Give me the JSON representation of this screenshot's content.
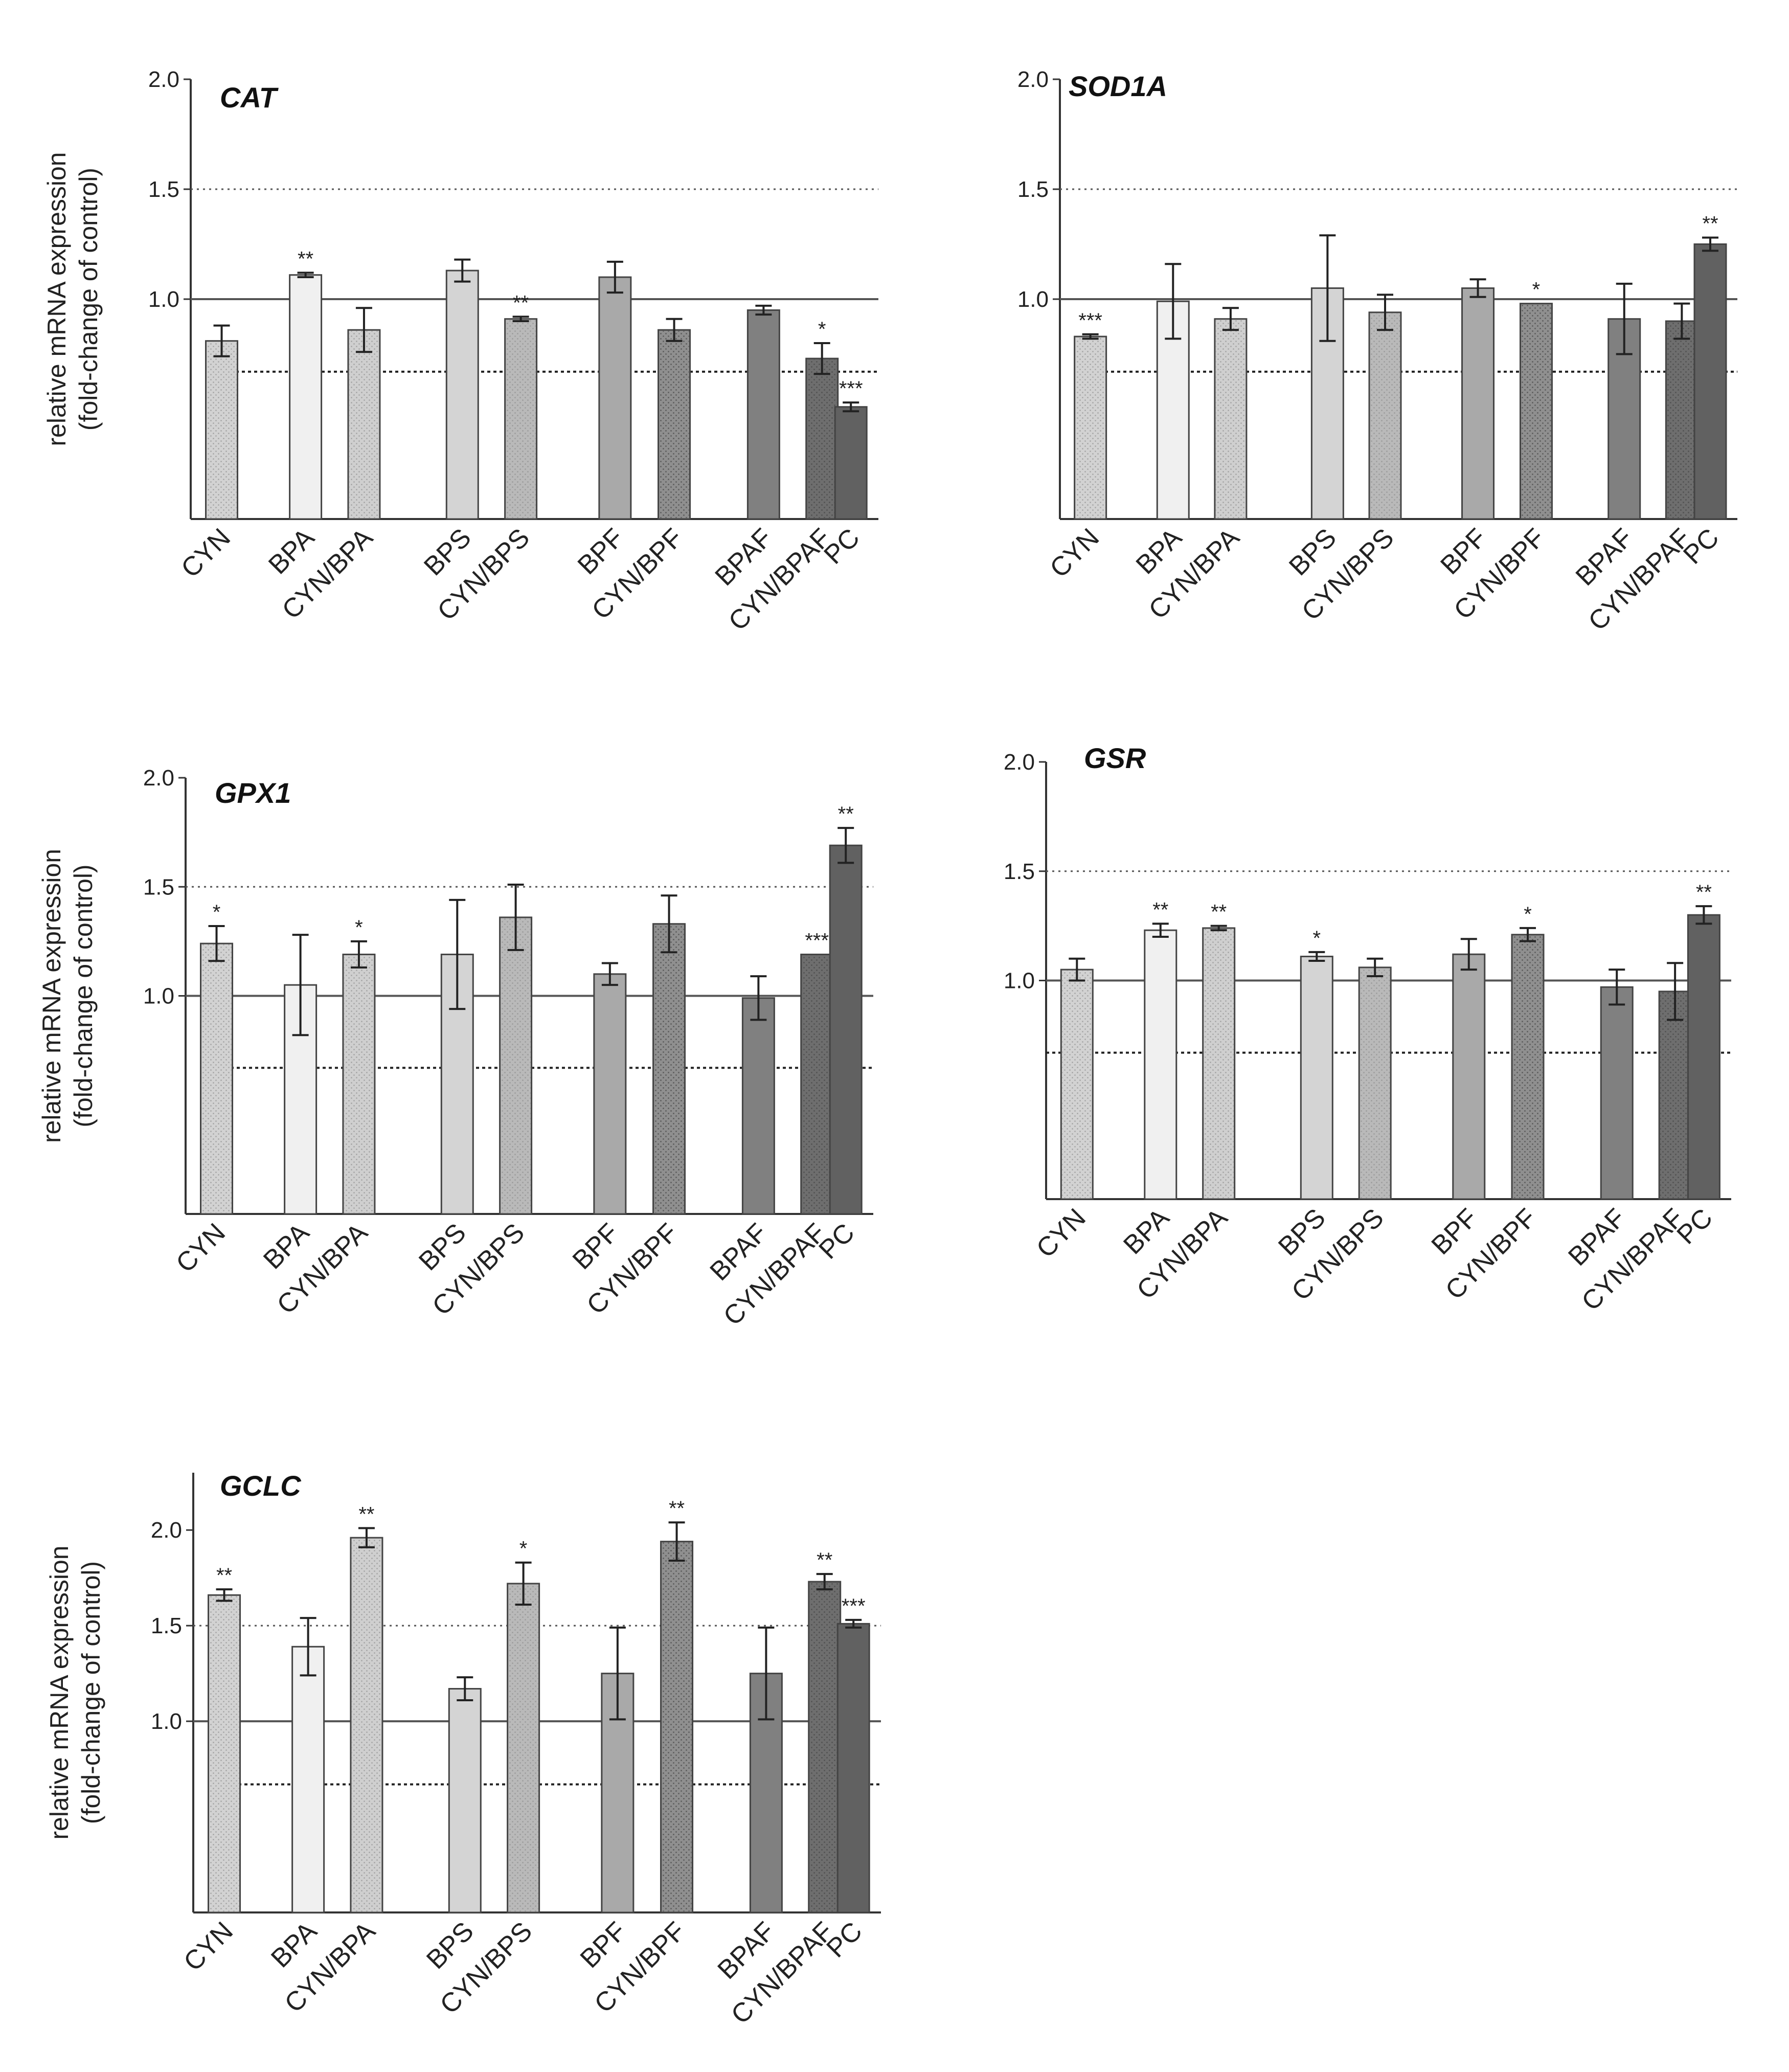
{
  "colors": {
    "background": "#ffffff",
    "axis": "#333333",
    "CYN": "#d2d2d2",
    "BPA": "#f0f0f0",
    "CYN/BPA": "#cfcfcf",
    "BPS": "#d4d4d4",
    "CYN/BPS": "#b9b9b9",
    "BPF": "#a9a9a9",
    "CYN/BPF": "#8f8f8f",
    "BPAF": "#808080",
    "CYN/BPAF": "#6e6e6e",
    "PC": "#616161"
  },
  "chart_data": [
    {
      "type": "bar",
      "title": "CAT",
      "ylabel": [
        "relative mRNA expression",
        "(fold-change of control)"
      ],
      "ytick_labels": [
        "1.0",
        "1.5",
        "2.0"
      ],
      "ylim": [
        0,
        2.0
      ],
      "reference_lines": {
        "solid": 1.0,
        "dotted_upper": 1.5,
        "dotted_lower": 0.67
      },
      "categories": [
        "CYN",
        "BPA",
        "CYN/BPA",
        "BPS",
        "CYN/BPS",
        "BPF",
        "CYN/BPF",
        "BPAF",
        "CYN/BPAF",
        "PC"
      ],
      "values": [
        0.81,
        1.11,
        0.86,
        1.13,
        0.91,
        1.1,
        0.86,
        0.95,
        0.73,
        0.51
      ],
      "errors": [
        0.07,
        0.01,
        0.1,
        0.05,
        0.01,
        0.07,
        0.05,
        0.02,
        0.07,
        0.02
      ],
      "significance": [
        "",
        "**",
        "",
        "",
        "**",
        "",
        "",
        "",
        "*",
        "***"
      ]
    },
    {
      "type": "bar",
      "title": "SOD1A",
      "ylabel": [],
      "ytick_labels": [
        "1.0",
        "1.5",
        "2.0"
      ],
      "ylim": [
        0,
        2.0
      ],
      "reference_lines": {
        "solid": 1.0,
        "dotted_upper": 1.5,
        "dotted_lower": 0.67
      },
      "categories": [
        "CYN",
        "BPA",
        "CYN/BPA",
        "BPS",
        "CYN/BPS",
        "BPF",
        "CYN/BPF",
        "BPAF",
        "CYN/BPAF",
        "PC"
      ],
      "values": [
        0.83,
        0.99,
        0.91,
        1.05,
        0.94,
        1.05,
        0.98,
        0.91,
        0.9,
        1.25
      ],
      "errors": [
        0.01,
        0.17,
        0.05,
        0.24,
        0.08,
        0.04,
        0.0,
        0.16,
        0.08,
        0.03
      ],
      "significance": [
        "***",
        "",
        "",
        "",
        "",
        "",
        "*",
        "",
        "",
        "**"
      ]
    },
    {
      "type": "bar",
      "title": "GPX1",
      "ylabel": [
        "relative mRNA expression",
        "(fold-change of control)"
      ],
      "ytick_labels": [
        "1.0",
        "1.5",
        "2.0"
      ],
      "ylim": [
        0,
        2.0
      ],
      "reference_lines": {
        "solid": 1.0,
        "dotted_upper": 1.5,
        "dotted_lower": 0.67
      },
      "categories": [
        "CYN",
        "BPA",
        "CYN/BPA",
        "BPS",
        "CYN/BPS",
        "BPF",
        "CYN/BPF",
        "BPAF",
        "CYN/BPAF",
        "PC"
      ],
      "values": [
        1.24,
        1.05,
        1.19,
        1.19,
        1.36,
        1.1,
        1.33,
        0.99,
        1.19,
        1.69
      ],
      "errors": [
        0.08,
        0.23,
        0.06,
        0.25,
        0.15,
        0.05,
        0.13,
        0.1,
        0.0,
        0.08
      ],
      "significance": [
        "*",
        "",
        "*",
        "",
        "",
        "",
        "",
        "",
        "***",
        "**"
      ]
    },
    {
      "type": "bar",
      "title": "GSR",
      "ylabel": [],
      "ytick_labels": [
        "1.0",
        "1.5",
        "2.0"
      ],
      "ylim": [
        0,
        2.0
      ],
      "reference_lines": {
        "solid": 1.0,
        "dotted_upper": 1.5,
        "dotted_lower": 0.67
      },
      "categories": [
        "CYN",
        "BPA",
        "CYN/BPA",
        "BPS",
        "CYN/BPS",
        "BPF",
        "CYN/BPF",
        "BPAF",
        "CYN/BPAF",
        "PC"
      ],
      "values": [
        1.05,
        1.23,
        1.24,
        1.11,
        1.06,
        1.12,
        1.21,
        0.97,
        0.95,
        1.3
      ],
      "errors": [
        0.05,
        0.03,
        0.01,
        0.02,
        0.04,
        0.07,
        0.03,
        0.08,
        0.13,
        0.04
      ],
      "significance": [
        "",
        "**",
        "**",
        "*",
        "",
        "",
        "*",
        "",
        "",
        "**"
      ]
    },
    {
      "type": "bar",
      "title": "GCLC",
      "ylabel": [
        "relative mRNA expression",
        "(fold-change of control)"
      ],
      "ytick_labels": [
        "1.0",
        "1.5",
        "2.0"
      ],
      "ylim": [
        0,
        2.3
      ],
      "reference_lines": {
        "solid": 1.0,
        "dotted_upper": 1.5,
        "dotted_lower": 0.67
      },
      "categories": [
        "CYN",
        "BPA",
        "CYN/BPA",
        "BPS",
        "CYN/BPS",
        "BPF",
        "CYN/BPF",
        "BPAF",
        "CYN/BPAF",
        "PC"
      ],
      "values": [
        1.66,
        1.39,
        1.96,
        1.17,
        1.72,
        1.25,
        1.94,
        1.25,
        1.73,
        1.51
      ],
      "errors": [
        0.03,
        0.15,
        0.05,
        0.06,
        0.11,
        0.24,
        0.1,
        0.24,
        0.04,
        0.02
      ],
      "significance": [
        "**",
        "",
        "**",
        "",
        "*",
        "",
        "**",
        "",
        "**",
        "***"
      ]
    }
  ]
}
